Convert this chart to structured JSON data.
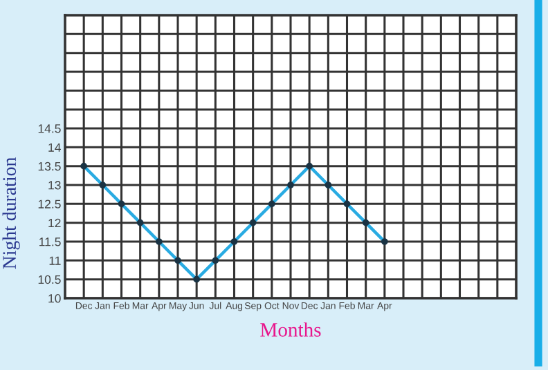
{
  "chart_data": {
    "type": "line",
    "xlabel": "Months",
    "ylabel": "Night duration",
    "categories": [
      "Dec",
      "Jan",
      "Feb",
      "Mar",
      "Apr",
      "May",
      "Jun",
      "Jul",
      "Aug",
      "Sep",
      "Oct",
      "Nov",
      "Dec",
      "Jan",
      "Feb",
      "Mar",
      "Apr",
      null,
      null,
      null,
      null,
      null,
      null
    ],
    "series": [
      {
        "color": "#29abe2",
        "values": [
          13.5,
          13,
          12.5,
          12,
          11.5,
          11,
          10.5,
          11,
          11.5,
          12,
          12.5,
          13,
          13.5,
          13,
          12.5,
          12,
          11.5,
          null,
          null,
          null,
          null,
          null,
          null
        ]
      }
    ],
    "ylim": [
      10,
      17.5
    ],
    "yticks": [
      10,
      10.5,
      11,
      11.5,
      12,
      12.5,
      13,
      13.5,
      14,
      14.5,
      {
        "value": 15,
        "label": null
      },
      {
        "value": 15.5,
        "label": null
      },
      {
        "value": 16,
        "label": null
      },
      {
        "value": 16.5,
        "label": null
      },
      {
        "value": 17,
        "label": null
      },
      {
        "value": 17.5,
        "label": null
      }
    ],
    "grid": true,
    "marker": "circle",
    "line_style": "solid"
  }
}
